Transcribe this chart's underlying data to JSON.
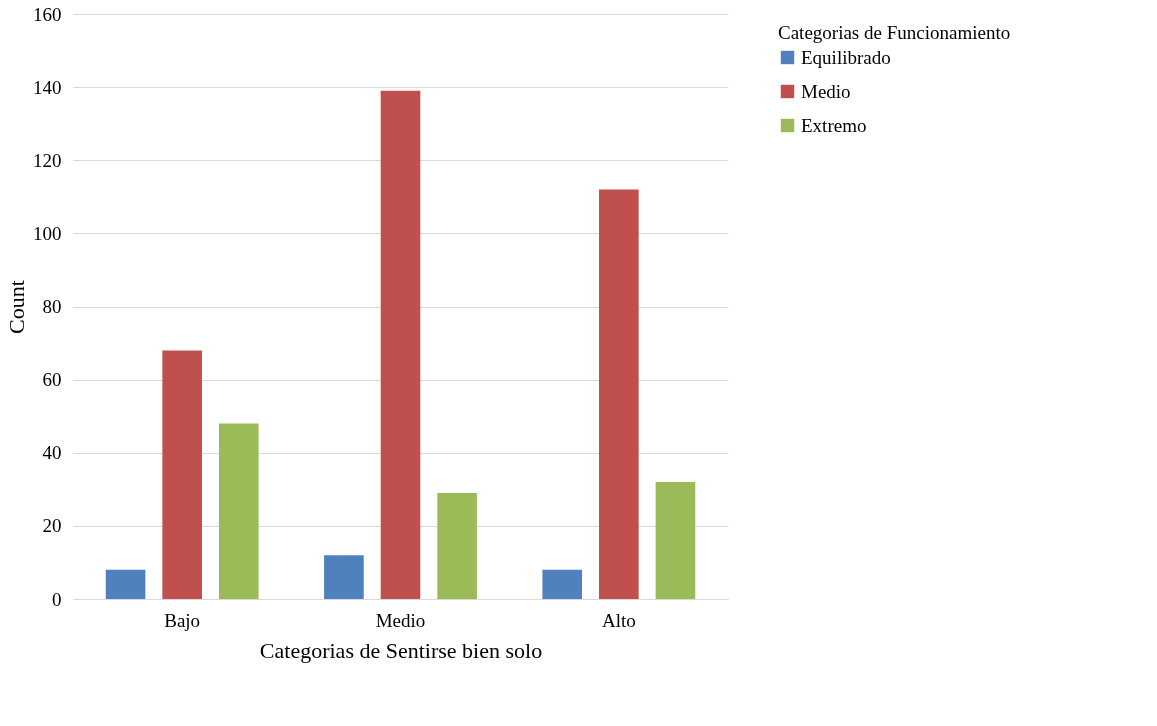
{
  "chart_data": {
    "type": "bar",
    "xlabel": "Categorias de Sentirse bien solo",
    "ylabel": "Count",
    "legend_title": "Categorias de Funcionamiento",
    "categories": [
      "Bajo",
      "Medio",
      "Alto"
    ],
    "series": [
      {
        "name": "Equilibrado",
        "color": "#4f81bd",
        "values": [
          8,
          12,
          8
        ]
      },
      {
        "name": "Medio",
        "color": "#c0504d",
        "values": [
          68,
          139,
          112
        ]
      },
      {
        "name": "Extremo",
        "color": "#9bbb59",
        "values": [
          48,
          29,
          32
        ]
      }
    ],
    "ylim": [
      0,
      160
    ],
    "yticks": [
      0,
      20,
      40,
      60,
      80,
      100,
      120,
      140,
      160
    ],
    "grid": "y",
    "legend": "right"
  }
}
